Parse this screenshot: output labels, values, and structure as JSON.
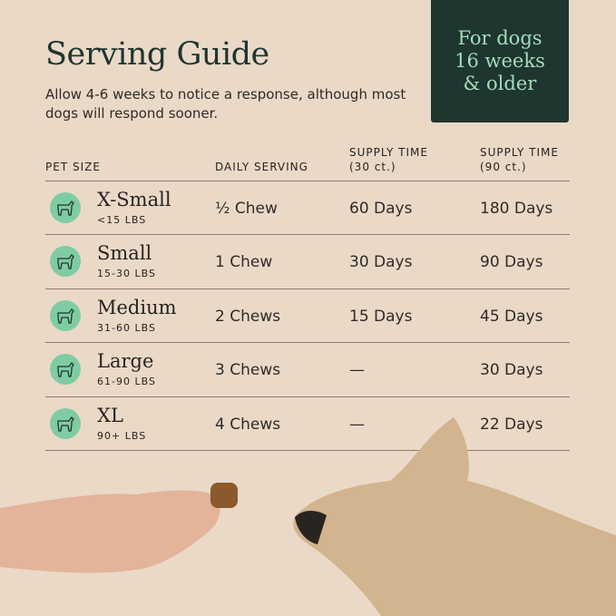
{
  "title": "Serving Guide",
  "subtitle": "Allow 4-6 weeks to notice a response, although most dogs will respond sooner.",
  "badge": "For dogs 16 weeks & older",
  "headers": {
    "size": "PET SIZE",
    "daily": "DAILY SERVING",
    "s30": "SUPPLY TIME (30 ct.)",
    "s90": "SUPPLY TIME (90 ct.)"
  },
  "rows": [
    {
      "name": "X-Small",
      "weight": "<15 LBS",
      "daily": "½ Chew",
      "s30": "60 Days",
      "s90": "180 Days",
      "icon": "chihuahua-icon"
    },
    {
      "name": "Small",
      "weight": "15-30 LBS",
      "daily": "1 Chew",
      "s30": "30 Days",
      "s90": "90 Days",
      "icon": "dachshund-icon"
    },
    {
      "name": "Medium",
      "weight": "31-60 LBS",
      "daily": "2 Chews",
      "s30": "15 Days",
      "s90": "45 Days",
      "icon": "bulldog-icon"
    },
    {
      "name": "Large",
      "weight": "61-90 LBS",
      "daily": "3 Chews",
      "s30": "—",
      "s90": "30 Days",
      "icon": "retriever-icon"
    },
    {
      "name": "XL",
      "weight": "90+ LBS",
      "daily": "4 Chews",
      "s30": "—",
      "s90": "22 Days",
      "icon": "doberman-icon"
    }
  ],
  "colors": {
    "background": "#ead9c7",
    "badge": "#1f3530",
    "accent": "#7fcca3"
  }
}
